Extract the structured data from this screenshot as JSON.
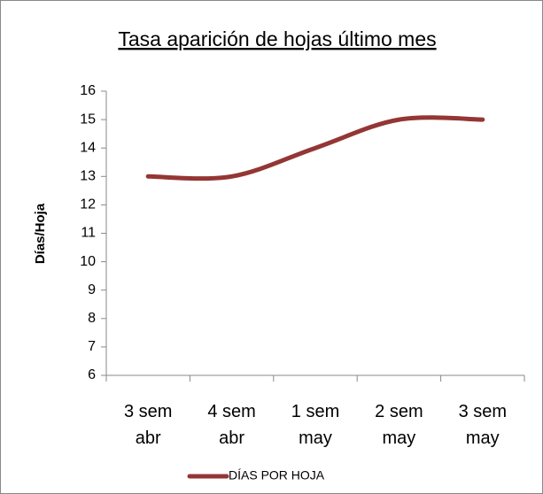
{
  "chart_data": {
    "type": "line",
    "title": "Tasa aparición de hojas último mes",
    "y_label": "Días/Hoja",
    "categories": [
      "3 sem abr",
      "4 sem abr",
      "1 sem may",
      "2 sem may",
      "3 sem may"
    ],
    "series": [
      {
        "name": "DÍAS POR HOJA",
        "color": "#943634",
        "values": [
          13,
          13,
          14,
          15,
          15
        ]
      }
    ],
    "ylim": [
      6,
      16
    ],
    "yticks": [
      6,
      7,
      8,
      9,
      10,
      11,
      12,
      13,
      14,
      15,
      16
    ],
    "smooth": true,
    "grid": false,
    "legend": "bottom"
  }
}
